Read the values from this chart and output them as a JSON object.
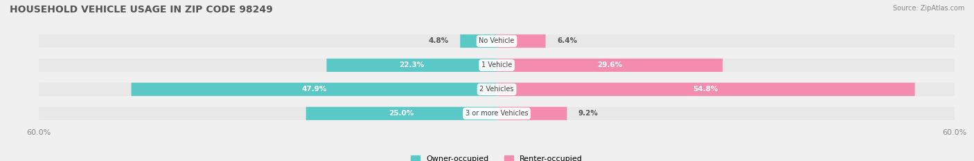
{
  "title": "HOUSEHOLD VEHICLE USAGE IN ZIP CODE 98249",
  "source": "Source: ZipAtlas.com",
  "categories": [
    "No Vehicle",
    "1 Vehicle",
    "2 Vehicles",
    "3 or more Vehicles"
  ],
  "owner_values": [
    4.8,
    22.3,
    47.9,
    25.0
  ],
  "renter_values": [
    6.4,
    29.6,
    54.8,
    9.2
  ],
  "owner_color": "#5bc8c8",
  "renter_color": "#f48caf",
  "axis_max": 60.0,
  "bar_height": 0.55,
  "bg_color": "#f0f0f0",
  "bar_bg_color": "#e8e8e8",
  "label_color_dark": "#555555",
  "label_color_white": "#ffffff",
  "legend_owner": "Owner-occupied",
  "legend_renter": "Renter-occupied"
}
